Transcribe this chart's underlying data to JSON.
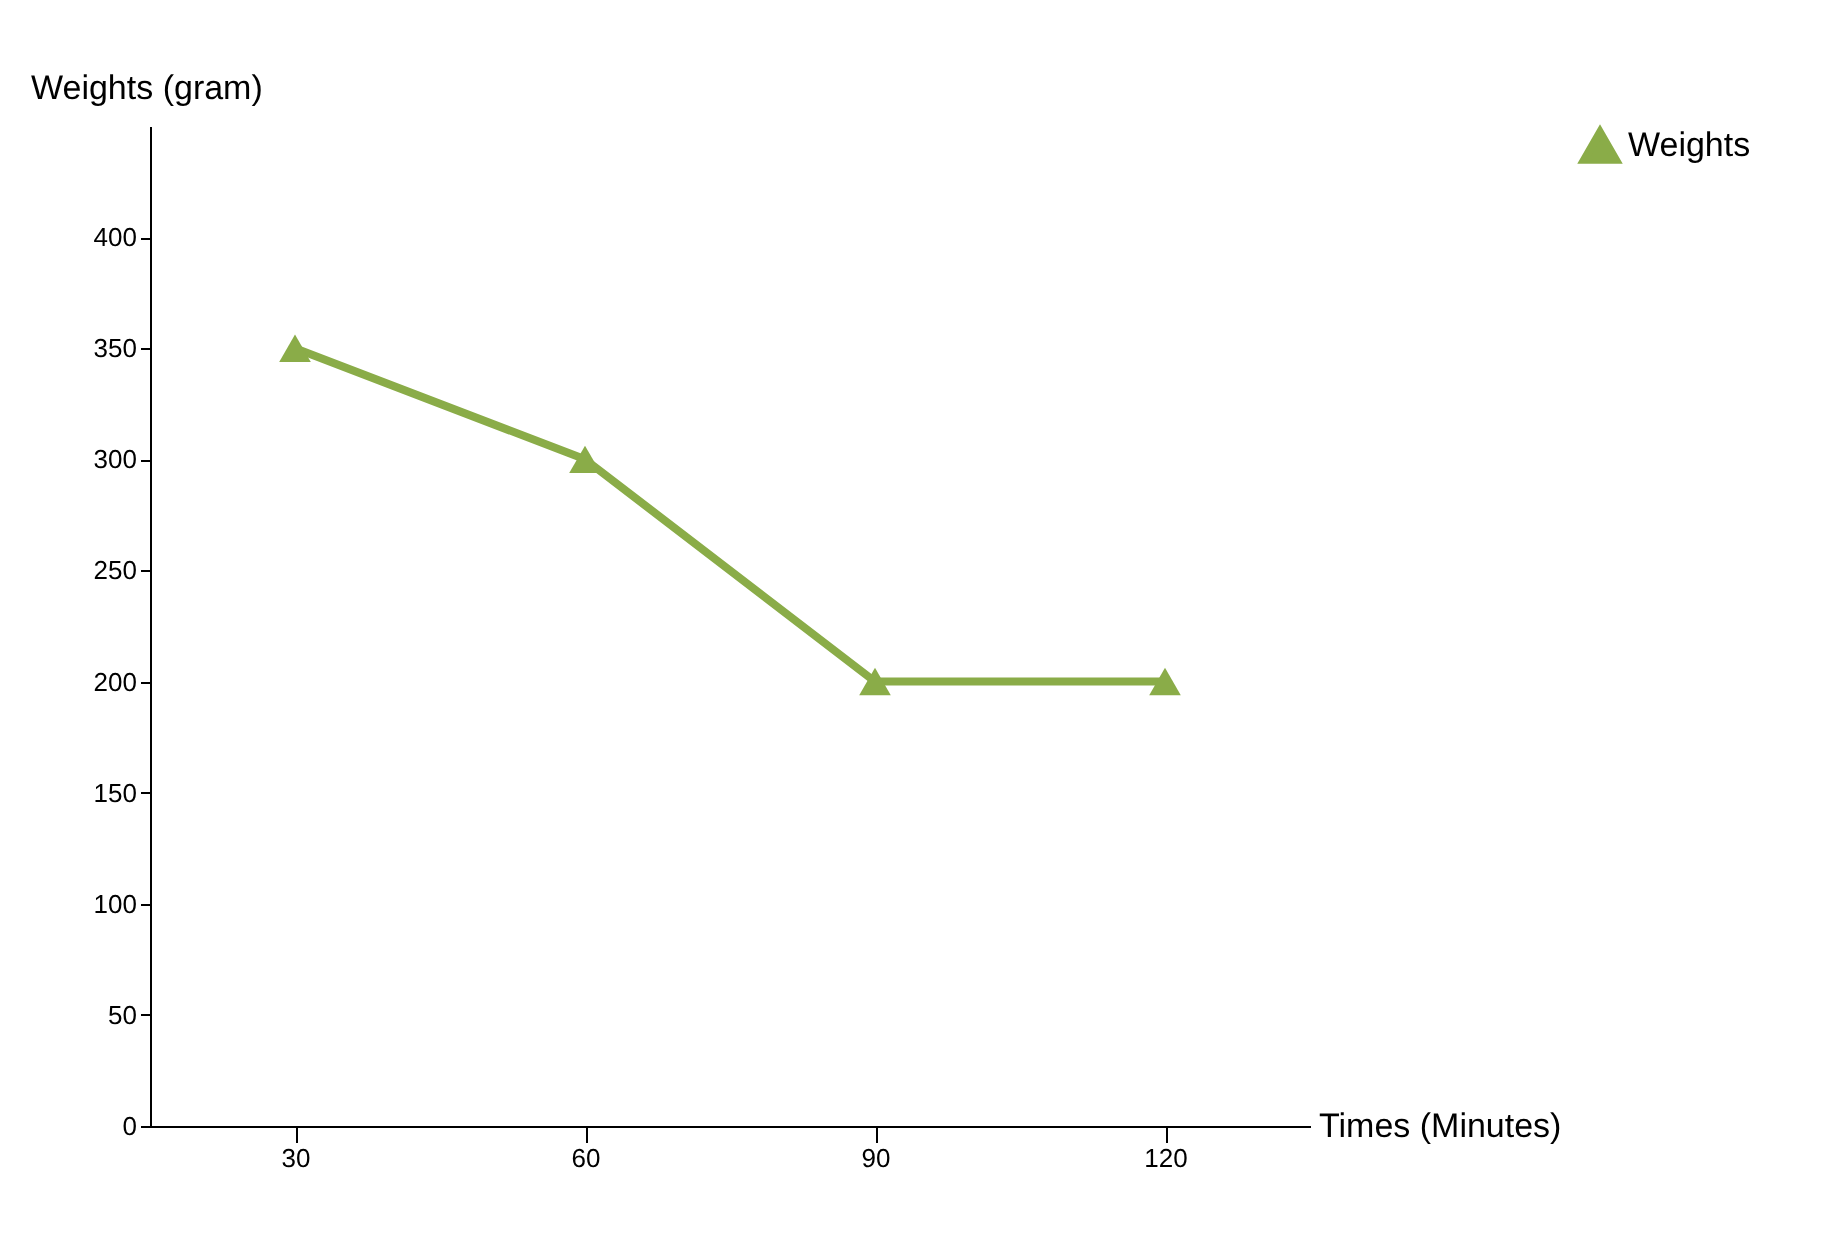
{
  "chart_data": {
    "type": "line",
    "xlabel": "Times (Minutes)",
    "ylabel": "Weights (gram)",
    "categories": [
      "30",
      "60",
      "90",
      "120"
    ],
    "series": [
      {
        "name": "Weights",
        "color": "#8aac48",
        "values": [
          350,
          300,
          200,
          200
        ]
      }
    ],
    "ylim": [
      0,
      450
    ],
    "yticks": [
      0,
      50,
      100,
      150,
      200,
      250,
      300,
      350,
      400
    ],
    "grid": false,
    "legend": "right",
    "marker": "triangle",
    "line_style": "solid"
  }
}
